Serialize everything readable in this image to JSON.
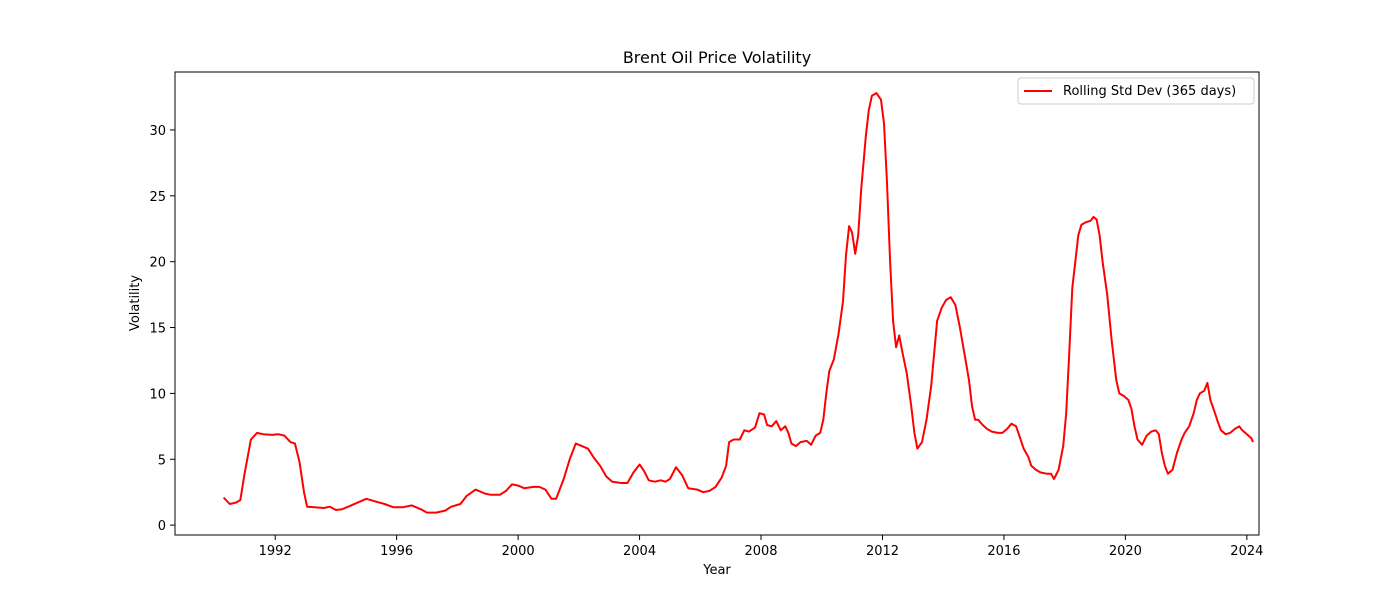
{
  "chart_data": {
    "type": "line",
    "title": "Brent Oil Price Volatility",
    "xlabel": "Year",
    "ylabel": "Volatility",
    "xlim": [
      1988.7,
      2024.4
    ],
    "ylim": [
      -0.75,
      34.4
    ],
    "x_ticks": [
      1992,
      1996,
      2000,
      2004,
      2008,
      2012,
      2016,
      2020,
      2024
    ],
    "y_ticks": [
      0,
      5,
      10,
      15,
      20,
      25,
      30
    ],
    "grid": false,
    "legend_position": "top-right",
    "series": [
      {
        "name": "Rolling Std Dev (365 days)",
        "color": "#ff0000",
        "points": [
          [
            1990.3,
            2.1
          ],
          [
            1990.5,
            1.6
          ],
          [
            1990.7,
            1.7
          ],
          [
            1990.85,
            1.9
          ],
          [
            1991.0,
            4.0
          ],
          [
            1991.2,
            6.5
          ],
          [
            1991.4,
            7.0
          ],
          [
            1991.6,
            6.9
          ],
          [
            1991.9,
            6.85
          ],
          [
            1992.1,
            6.9
          ],
          [
            1992.3,
            6.8
          ],
          [
            1992.5,
            6.3
          ],
          [
            1992.65,
            6.2
          ],
          [
            1992.8,
            4.8
          ],
          [
            1992.95,
            2.5
          ],
          [
            1993.05,
            1.4
          ],
          [
            1993.3,
            1.35
          ],
          [
            1993.6,
            1.3
          ],
          [
            1993.8,
            1.4
          ],
          [
            1994.0,
            1.15
          ],
          [
            1994.2,
            1.2
          ],
          [
            1994.5,
            1.5
          ],
          [
            1994.8,
            1.8
          ],
          [
            1995.0,
            2.0
          ],
          [
            1995.3,
            1.8
          ],
          [
            1995.6,
            1.6
          ],
          [
            1995.9,
            1.35
          ],
          [
            1996.2,
            1.35
          ],
          [
            1996.5,
            1.5
          ],
          [
            1996.8,
            1.2
          ],
          [
            1997.0,
            0.95
          ],
          [
            1997.3,
            0.95
          ],
          [
            1997.6,
            1.1
          ],
          [
            1997.8,
            1.4
          ],
          [
            1998.1,
            1.6
          ],
          [
            1998.3,
            2.2
          ],
          [
            1998.6,
            2.7
          ],
          [
            1998.9,
            2.4
          ],
          [
            1999.1,
            2.3
          ],
          [
            1999.4,
            2.3
          ],
          [
            1999.6,
            2.6
          ],
          [
            1999.8,
            3.1
          ],
          [
            2000.0,
            3.0
          ],
          [
            2000.2,
            2.8
          ],
          [
            2000.5,
            2.9
          ],
          [
            2000.7,
            2.9
          ],
          [
            2000.9,
            2.7
          ],
          [
            2001.1,
            2.0
          ],
          [
            2001.25,
            2.0
          ],
          [
            2001.5,
            3.5
          ],
          [
            2001.7,
            5.0
          ],
          [
            2001.9,
            6.2
          ],
          [
            2002.1,
            6.0
          ],
          [
            2002.3,
            5.8
          ],
          [
            2002.5,
            5.1
          ],
          [
            2002.7,
            4.5
          ],
          [
            2002.9,
            3.7
          ],
          [
            2003.1,
            3.3
          ],
          [
            2003.4,
            3.2
          ],
          [
            2003.6,
            3.2
          ],
          [
            2003.8,
            4.0
          ],
          [
            2004.0,
            4.6
          ],
          [
            2004.15,
            4.1
          ],
          [
            2004.3,
            3.4
          ],
          [
            2004.5,
            3.3
          ],
          [
            2004.7,
            3.4
          ],
          [
            2004.85,
            3.3
          ],
          [
            2005.0,
            3.5
          ],
          [
            2005.2,
            4.4
          ],
          [
            2005.4,
            3.8
          ],
          [
            2005.6,
            2.8
          ],
          [
            2005.9,
            2.7
          ],
          [
            2006.1,
            2.5
          ],
          [
            2006.3,
            2.6
          ],
          [
            2006.5,
            2.9
          ],
          [
            2006.7,
            3.6
          ],
          [
            2006.85,
            4.5
          ],
          [
            2006.95,
            6.3
          ],
          [
            2007.1,
            6.5
          ],
          [
            2007.3,
            6.5
          ],
          [
            2007.45,
            7.2
          ],
          [
            2007.6,
            7.1
          ],
          [
            2007.8,
            7.4
          ],
          [
            2007.95,
            8.5
          ],
          [
            2008.1,
            8.4
          ],
          [
            2008.2,
            7.6
          ],
          [
            2008.35,
            7.5
          ],
          [
            2008.5,
            7.9
          ],
          [
            2008.65,
            7.2
          ],
          [
            2008.8,
            7.5
          ],
          [
            2008.9,
            7.0
          ],
          [
            2009.0,
            6.2
          ],
          [
            2009.15,
            6.0
          ],
          [
            2009.3,
            6.3
          ],
          [
            2009.5,
            6.4
          ],
          [
            2009.65,
            6.1
          ],
          [
            2009.8,
            6.8
          ],
          [
            2009.95,
            7.0
          ],
          [
            2010.05,
            8.0
          ],
          [
            2010.15,
            10.0
          ],
          [
            2010.25,
            11.7
          ],
          [
            2010.4,
            12.6
          ],
          [
            2010.55,
            14.5
          ],
          [
            2010.7,
            17.0
          ],
          [
            2010.8,
            20.5
          ],
          [
            2010.9,
            22.7
          ],
          [
            2011.0,
            22.2
          ],
          [
            2011.1,
            20.6
          ],
          [
            2011.2,
            22.0
          ],
          [
            2011.3,
            25.5
          ],
          [
            2011.45,
            29.5
          ],
          [
            2011.55,
            31.5
          ],
          [
            2011.65,
            32.6
          ],
          [
            2011.8,
            32.8
          ],
          [
            2011.95,
            32.3
          ],
          [
            2012.05,
            30.5
          ],
          [
            2012.15,
            26.0
          ],
          [
            2012.25,
            20.0
          ],
          [
            2012.35,
            15.5
          ],
          [
            2012.45,
            13.5
          ],
          [
            2012.55,
            14.4
          ],
          [
            2012.65,
            13.2
          ],
          [
            2012.8,
            11.5
          ],
          [
            2012.95,
            9.0
          ],
          [
            2013.05,
            7.0
          ],
          [
            2013.15,
            5.8
          ],
          [
            2013.3,
            6.3
          ],
          [
            2013.45,
            8.0
          ],
          [
            2013.6,
            10.5
          ],
          [
            2013.7,
            13.0
          ],
          [
            2013.8,
            15.5
          ],
          [
            2013.95,
            16.5
          ],
          [
            2014.1,
            17.1
          ],
          [
            2014.25,
            17.3
          ],
          [
            2014.4,
            16.7
          ],
          [
            2014.55,
            15.0
          ],
          [
            2014.7,
            13.0
          ],
          [
            2014.85,
            11.0
          ],
          [
            2014.95,
            9.0
          ],
          [
            2015.05,
            8.0
          ],
          [
            2015.15,
            8.0
          ],
          [
            2015.3,
            7.6
          ],
          [
            2015.45,
            7.3
          ],
          [
            2015.6,
            7.1
          ],
          [
            2015.8,
            7.0
          ],
          [
            2015.95,
            7.0
          ],
          [
            2016.1,
            7.3
          ],
          [
            2016.25,
            7.7
          ],
          [
            2016.4,
            7.5
          ],
          [
            2016.55,
            6.5
          ],
          [
            2016.65,
            5.8
          ],
          [
            2016.8,
            5.2
          ],
          [
            2016.9,
            4.5
          ],
          [
            2017.05,
            4.2
          ],
          [
            2017.2,
            4.0
          ],
          [
            2017.4,
            3.9
          ],
          [
            2017.55,
            3.9
          ],
          [
            2017.65,
            3.5
          ],
          [
            2017.8,
            4.2
          ],
          [
            2017.95,
            6.0
          ],
          [
            2018.05,
            8.5
          ],
          [
            2018.15,
            13.0
          ],
          [
            2018.25,
            18.0
          ],
          [
            2018.35,
            20.0
          ],
          [
            2018.45,
            22.0
          ],
          [
            2018.55,
            22.8
          ],
          [
            2018.7,
            23.0
          ],
          [
            2018.85,
            23.1
          ],
          [
            2018.95,
            23.4
          ],
          [
            2019.05,
            23.2
          ],
          [
            2019.15,
            22.0
          ],
          [
            2019.25,
            20.0
          ],
          [
            2019.4,
            17.5
          ],
          [
            2019.55,
            14.0
          ],
          [
            2019.7,
            11.0
          ],
          [
            2019.8,
            10.0
          ],
          [
            2019.95,
            9.8
          ],
          [
            2020.1,
            9.5
          ],
          [
            2020.2,
            8.8
          ],
          [
            2020.3,
            7.5
          ],
          [
            2020.4,
            6.5
          ],
          [
            2020.55,
            6.1
          ],
          [
            2020.7,
            6.8
          ],
          [
            2020.85,
            7.1
          ],
          [
            2021.0,
            7.2
          ],
          [
            2021.1,
            6.9
          ],
          [
            2021.2,
            5.5
          ],
          [
            2021.3,
            4.5
          ],
          [
            2021.4,
            3.9
          ],
          [
            2021.55,
            4.2
          ],
          [
            2021.7,
            5.5
          ],
          [
            2021.85,
            6.5
          ],
          [
            2021.95,
            7.0
          ],
          [
            2022.1,
            7.5
          ],
          [
            2022.25,
            8.5
          ],
          [
            2022.35,
            9.5
          ],
          [
            2022.45,
            10.0
          ],
          [
            2022.6,
            10.2
          ],
          [
            2022.7,
            10.8
          ],
          [
            2022.8,
            9.5
          ],
          [
            2022.95,
            8.5
          ],
          [
            2023.05,
            7.8
          ],
          [
            2023.15,
            7.2
          ],
          [
            2023.3,
            6.9
          ],
          [
            2023.45,
            7.0
          ],
          [
            2023.6,
            7.3
          ],
          [
            2023.75,
            7.5
          ],
          [
            2023.85,
            7.2
          ],
          [
            2023.95,
            7.0
          ],
          [
            2024.05,
            6.8
          ],
          [
            2024.15,
            6.6
          ],
          [
            2024.2,
            6.3
          ]
        ]
      }
    ]
  }
}
